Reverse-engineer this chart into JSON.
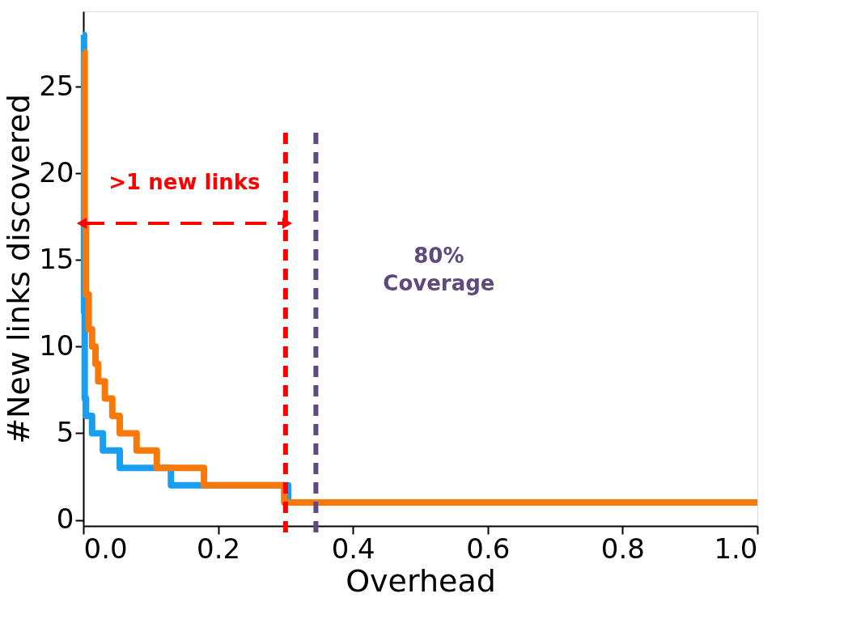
{
  "chart_data": {
    "type": "step",
    "xlabel": "Overhead",
    "ylabel": "#New links discovered",
    "xlim": [
      0,
      1
    ],
    "ylim": [
      -0.35,
      29.35
    ],
    "xticks": [
      {
        "value": 0,
        "label": "0.0"
      },
      {
        "value": 0.2,
        "label": "0.2"
      },
      {
        "value": 0.4,
        "label": "0.4"
      },
      {
        "value": 0.6,
        "label": "0.6"
      },
      {
        "value": 0.8,
        "label": "0.8"
      },
      {
        "value": 1,
        "label": "1.0"
      }
    ],
    "yticks": [
      0,
      5,
      10,
      15,
      20,
      25
    ],
    "grid": false,
    "line_style": "solid",
    "marker": "none",
    "series": [
      {
        "color": "#1a9ff0",
        "x": [
          0,
          0.001,
          0.002,
          0.004,
          0.013,
          0.029,
          0.054,
          0.13,
          0.304
        ],
        "values": [
          28,
          12,
          7,
          6,
          5,
          4,
          3,
          2,
          1
        ]
      },
      {
        "color": "#f7790c",
        "x": [
          0,
          0.002,
          0.004,
          0.008,
          0.013,
          0.018,
          0.022,
          0.032,
          0.043,
          0.054,
          0.079,
          0.109,
          0.179,
          0.298,
          1.0
        ],
        "values": [
          27,
          17,
          13,
          11,
          10,
          9,
          8,
          7,
          6,
          5,
          4,
          3,
          2,
          1,
          1
        ]
      }
    ],
    "ref_lines": [
      {
        "axis": "x",
        "value": 0.3,
        "color": "#ff0000",
        "line_style": "dashed"
      },
      {
        "axis": "x",
        "value": 0.345,
        "color": "#5e4a7c",
        "line_style": "dashed"
      }
    ],
    "annotations": [
      ">1 new links",
      "80% Coverage"
    ]
  }
}
